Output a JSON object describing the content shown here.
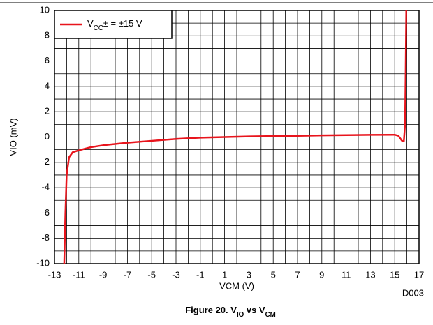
{
  "chart_data": {
    "type": "line",
    "title": [
      "Figure 20. V",
      "IO",
      " vs V",
      "CM"
    ],
    "xlabel": "VCM (V)",
    "ylabel": "VIO (mV)",
    "note": "D003",
    "xlim": [
      -13,
      17
    ],
    "xticks": [
      -13,
      -11,
      -9,
      -7,
      -5,
      -3,
      -1,
      1,
      3,
      5,
      7,
      9,
      11,
      13,
      15,
      17
    ],
    "ylim": [
      -10,
      10
    ],
    "yticks": [
      -10,
      -8,
      -6,
      -4,
      -2,
      0,
      2,
      4,
      6,
      8,
      10
    ],
    "grid": true,
    "minor_grid": true,
    "legend": "upper left",
    "series": [
      {
        "name": [
          "V",
          "CC",
          "± = ±15 V"
        ],
        "color": "#e8141c",
        "x": [
          -12.2,
          -12.1,
          -12.0,
          -11.8,
          -11.5,
          -11,
          -10,
          -9,
          -7,
          -5,
          -3,
          -1,
          1,
          3,
          5,
          7,
          9,
          11,
          13,
          15,
          15.3,
          15.6,
          15.75,
          15.85,
          15.9,
          15.95
        ],
        "values": [
          -10,
          -6,
          -3,
          -1.6,
          -1.2,
          -1.05,
          -0.8,
          -0.65,
          -0.45,
          -0.3,
          -0.15,
          -0.05,
          0,
          0.05,
          0.08,
          0.1,
          0.13,
          0.15,
          0.17,
          0.18,
          0.1,
          -0.3,
          -0.35,
          1,
          5,
          10
        ]
      }
    ]
  }
}
